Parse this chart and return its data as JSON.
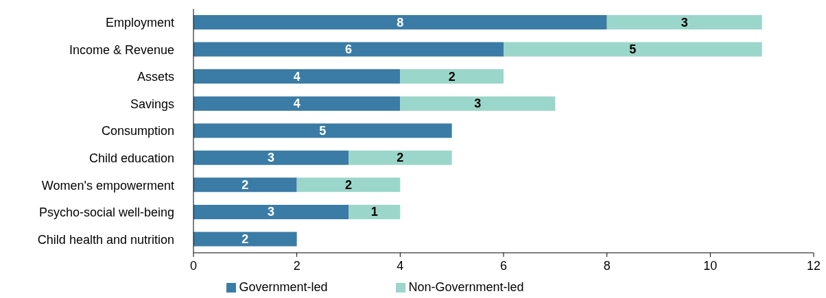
{
  "chart_data": {
    "type": "bar",
    "orientation": "horizontal",
    "stacked": true,
    "categories": [
      "Employment",
      "Income & Revenue",
      "Assets",
      "Savings",
      "Consumption",
      "Child education",
      "Women's empowerment",
      "Psycho-social well-being",
      "Child health and nutrition"
    ],
    "series": [
      {
        "name": "Government-led",
        "color": "#3b7ca6",
        "values": [
          8,
          6,
          4,
          4,
          5,
          3,
          2,
          3,
          2
        ]
      },
      {
        "name": "Non-Government-led",
        "color": "#9bd6ca",
        "values": [
          3,
          5,
          2,
          3,
          null,
          2,
          2,
          1,
          null
        ]
      }
    ],
    "xlim": [
      0,
      12
    ],
    "xticks": [
      0,
      2,
      4,
      6,
      8,
      10,
      12
    ],
    "grid": false,
    "legend": "bottom",
    "data_labels": true
  }
}
